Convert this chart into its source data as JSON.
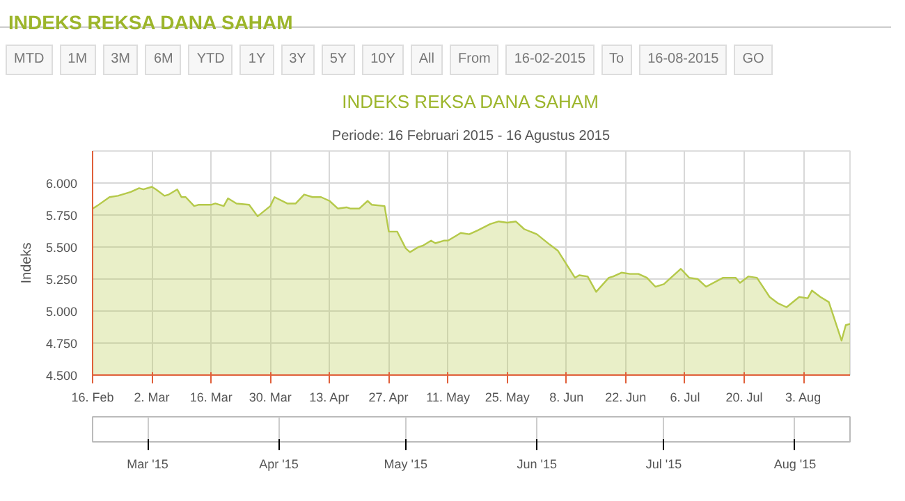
{
  "chart_data": {
    "type": "area",
    "title": "INDEKS REKSA DANA SAHAM",
    "subtitle": "Periode: 16 Februari 2015 - 16 Agustus 2015",
    "ylabel": "Indeks",
    "annotations": [
      "MTD",
      "1M",
      "3M",
      "6M",
      "YTD",
      "1Y",
      "3Y",
      "5Y",
      "10Y",
      "All",
      "From",
      "16-02-2015",
      "To",
      "16-08-2015",
      "GO"
    ],
    "x": [
      "2015-02-16",
      "2015-02-17",
      "2015-02-20",
      "2015-02-22",
      "2015-02-25",
      "2015-02-27",
      "2015-02-28",
      "2015-03-02",
      "2015-03-03",
      "2015-03-05",
      "2015-03-06",
      "2015-03-08",
      "2015-03-09",
      "2015-03-10",
      "2015-03-12",
      "2015-03-13",
      "2015-03-16",
      "2015-03-17",
      "2015-03-19",
      "2015-03-20",
      "2015-03-22",
      "2015-03-25",
      "2015-03-27",
      "2015-03-30",
      "2015-03-31",
      "2015-04-03",
      "2015-04-05",
      "2015-04-07",
      "2015-04-09",
      "2015-04-11",
      "2015-04-13",
      "2015-04-15",
      "2015-04-17",
      "2015-04-18",
      "2015-04-20",
      "2015-04-22",
      "2015-04-23",
      "2015-04-26",
      "2015-04-27",
      "2015-04-29",
      "2015-05-01",
      "2015-05-02",
      "2015-05-04",
      "2015-05-05",
      "2015-05-07",
      "2015-05-08",
      "2015-05-10",
      "2015-05-11",
      "2015-05-13",
      "2015-05-14",
      "2015-05-16",
      "2015-05-18",
      "2015-05-21",
      "2015-05-23",
      "2015-05-25",
      "2015-05-27",
      "2015-05-29",
      "2015-06-01",
      "2015-06-04",
      "2015-06-06",
      "2015-06-10",
      "2015-06-11",
      "2015-06-13",
      "2015-06-15",
      "2015-06-18",
      "2015-06-19",
      "2015-06-21",
      "2015-06-23",
      "2015-06-25",
      "2015-06-27",
      "2015-06-29",
      "2015-07-01",
      "2015-07-05",
      "2015-07-07",
      "2015-07-09",
      "2015-07-11",
      "2015-07-15",
      "2015-07-18",
      "2015-07-19",
      "2015-07-21",
      "2015-07-23",
      "2015-07-26",
      "2015-07-28",
      "2015-07-30",
      "2015-08-02",
      "2015-08-04",
      "2015-08-05",
      "2015-08-07",
      "2015-08-09",
      "2015-08-12",
      "2015-08-13",
      "2015-08-14"
    ],
    "series": [
      {
        "color": "#b5c94a",
        "values": [
          5800,
          5820,
          5890,
          5900,
          5930,
          5960,
          5950,
          5970,
          5950,
          5900,
          5910,
          5950,
          5890,
          5890,
          5820,
          5830,
          5830,
          5840,
          5820,
          5880,
          5840,
          5830,
          5740,
          5820,
          5890,
          5840,
          5840,
          5910,
          5890,
          5890,
          5860,
          5800,
          5810,
          5800,
          5800,
          5860,
          5830,
          5820,
          5620,
          5620,
          5490,
          5460,
          5500,
          5510,
          5550,
          5530,
          5550,
          5550,
          5590,
          5610,
          5600,
          5630,
          5680,
          5700,
          5690,
          5700,
          5640,
          5600,
          5520,
          5470,
          5260,
          5280,
          5270,
          5150,
          5260,
          5270,
          5300,
          5290,
          5290,
          5260,
          5190,
          5210,
          5330,
          5260,
          5250,
          5190,
          5260,
          5260,
          5220,
          5270,
          5260,
          5110,
          5060,
          5030,
          5110,
          5100,
          5160,
          5110,
          5070,
          4770,
          4890,
          4900
        ]
      }
    ],
    "xlim": [
      "2015-02-16",
      "2015-08-14"
    ],
    "xticks": [
      {
        "value": "2015-02-16",
        "label": "16. Feb"
      },
      {
        "value": "2015-03-02",
        "label": "2. Mar"
      },
      {
        "value": "2015-03-16",
        "label": "16. Mar"
      },
      {
        "value": "2015-03-30",
        "label": "30. Mar"
      },
      {
        "value": "2015-04-13",
        "label": "13. Apr"
      },
      {
        "value": "2015-04-27",
        "label": "27. Apr"
      },
      {
        "value": "2015-05-11",
        "label": "11. May"
      },
      {
        "value": "2015-05-25",
        "label": "25. May"
      },
      {
        "value": "2015-06-08",
        "label": "8. Jun"
      },
      {
        "value": "2015-06-22",
        "label": "22. Jun"
      },
      {
        "value": "2015-07-06",
        "label": "6. Jul"
      },
      {
        "value": "2015-07-20",
        "label": "20. Jul"
      },
      {
        "value": "2015-08-03",
        "label": "3. Aug"
      }
    ],
    "ylim": [
      4500,
      6250
    ],
    "yticks": [
      {
        "value": 4500,
        "label": "4.500"
      },
      {
        "value": 4750,
        "label": "4.750"
      },
      {
        "value": 5000,
        "label": "5.000"
      },
      {
        "value": 5250,
        "label": "5.250"
      },
      {
        "value": 5500,
        "label": "5.500"
      },
      {
        "value": 5750,
        "label": "5.750"
      },
      {
        "value": 6000,
        "label": "6.000"
      }
    ],
    "x2lim": [
      "2015-02-16",
      "2015-08-14"
    ],
    "x2ticks": [
      {
        "value": "2015-03-01",
        "label": "Mar '15"
      },
      {
        "value": "2015-04-01",
        "label": "Apr '15"
      },
      {
        "value": "2015-05-01",
        "label": "May '15"
      },
      {
        "value": "2015-06-01",
        "label": "Jun '15"
      },
      {
        "value": "2015-07-01",
        "label": "Jul '15"
      },
      {
        "value": "2015-08-01",
        "label": "Aug '15"
      }
    ],
    "grid": true
  }
}
